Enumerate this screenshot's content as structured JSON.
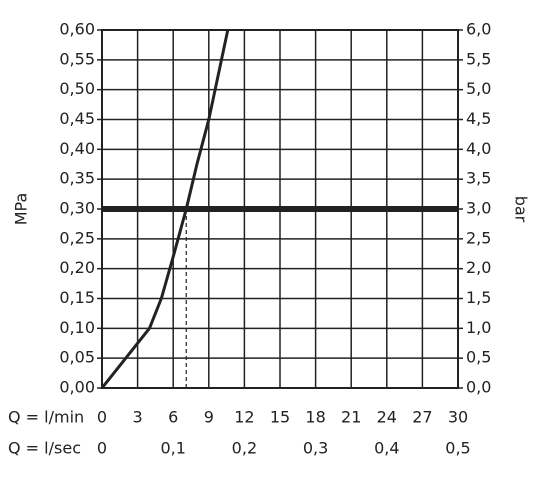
{
  "chart_data": {
    "type": "line",
    "x": [
      0,
      2,
      4,
      5,
      6,
      7.1,
      8,
      9,
      10.6
    ],
    "values": [
      0,
      0.05,
      0.1,
      0.15,
      0.22,
      0.3,
      0.375,
      0.45,
      0.6
    ],
    "color": "#222222",
    "xlabel": "Q = l/min",
    "x2label": "Q = l/sec",
    "ylabel": "MPa",
    "y2label": "bar",
    "xlim": [
      0,
      30
    ],
    "xticks": [
      0,
      3,
      6,
      9,
      12,
      15,
      18,
      21,
      24,
      27,
      30
    ],
    "x2lim": [
      0,
      0.5
    ],
    "x2ticks": [
      0,
      {
        "value": 0.1,
        "label": "0,1"
      },
      {
        "value": 0.2,
        "label": "0,2"
      },
      {
        "value": 0.3,
        "label": "0,3"
      },
      {
        "value": 0.4,
        "label": "0,4"
      },
      {
        "value": 0.5,
        "label": "0,5"
      }
    ],
    "ylim": [
      0,
      0.6
    ],
    "yticks": [
      {
        "value": 0,
        "label": "0,00"
      },
      {
        "value": 0.05,
        "label": "0,05"
      },
      {
        "value": 0.1,
        "label": "0,10"
      },
      {
        "value": 0.15,
        "label": "0,15"
      },
      {
        "value": 0.2,
        "label": "0,20"
      },
      {
        "value": 0.25,
        "label": "0,25"
      },
      {
        "value": 0.3,
        "label": "0,30"
      },
      {
        "value": 0.35,
        "label": "0,35"
      },
      {
        "value": 0.4,
        "label": "0,40"
      },
      {
        "value": 0.45,
        "label": "0,45"
      },
      {
        "value": 0.5,
        "label": "0,50"
      },
      {
        "value": 0.55,
        "label": "0,55"
      },
      {
        "value": 0.6,
        "label": "0,60"
      }
    ],
    "y2lim": [
      0,
      6
    ],
    "y2ticks": [
      {
        "value": 0,
        "label": "0,0"
      },
      {
        "value": 0.5,
        "label": "0,5"
      },
      {
        "value": 1,
        "label": "1,0"
      },
      {
        "value": 1.5,
        "label": "1,5"
      },
      {
        "value": 2,
        "label": "2,0"
      },
      {
        "value": 2.5,
        "label": "2,5"
      },
      {
        "value": 3,
        "label": "3,0"
      },
      {
        "value": 3.5,
        "label": "3,5"
      },
      {
        "value": 4,
        "label": "4,0"
      },
      {
        "value": 4.5,
        "label": "4,5"
      },
      {
        "value": 5,
        "label": "5,0"
      },
      {
        "value": 5.5,
        "label": "5,5"
      },
      {
        "value": 6,
        "label": "6,0"
      }
    ],
    "reference_y": 0.3,
    "reference_x": 7.1,
    "grid": true
  }
}
